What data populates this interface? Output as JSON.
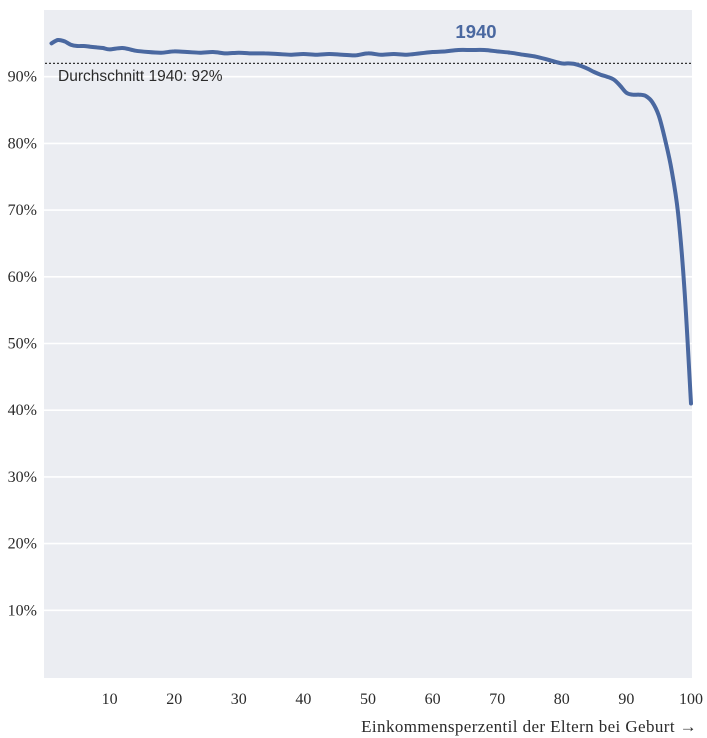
{
  "chart_data": {
    "type": "line",
    "xlabel": "Einkommensperzentil der Eltern bei Geburt →",
    "xlim": [
      0,
      100
    ],
    "ylim": [
      0,
      100
    ],
    "x_ticks": [
      10,
      20,
      30,
      40,
      50,
      60,
      70,
      80,
      90,
      100
    ],
    "x_tick_labels": [
      "10",
      "20",
      "30",
      "40",
      "50",
      "60",
      "70",
      "80",
      "90",
      "100"
    ],
    "y_ticks": [
      10,
      20,
      30,
      40,
      50,
      60,
      70,
      80,
      90
    ],
    "y_tick_labels": [
      "10%",
      "20%",
      "30%",
      "40%",
      "50%",
      "60%",
      "70%",
      "80%",
      "90%"
    ],
    "grid": true,
    "series": [
      {
        "name": "1940",
        "color": "#4a68a0",
        "x": [
          1,
          2,
          3,
          4,
          5,
          6,
          7,
          8,
          9,
          10,
          12,
          14,
          16,
          18,
          20,
          22,
          24,
          26,
          28,
          30,
          32,
          34,
          36,
          38,
          40,
          42,
          44,
          46,
          48,
          50,
          52,
          54,
          56,
          58,
          60,
          62,
          64,
          66,
          68,
          70,
          72,
          74,
          76,
          78,
          80,
          81,
          82,
          83,
          84,
          85,
          86,
          87,
          88,
          89,
          90,
          91,
          92,
          93,
          94,
          95,
          96,
          97,
          98,
          99,
          100
        ],
        "y": [
          95.0,
          95.5,
          95.3,
          94.8,
          94.6,
          94.6,
          94.5,
          94.4,
          94.3,
          94.1,
          94.3,
          93.9,
          93.7,
          93.6,
          93.8,
          93.7,
          93.6,
          93.7,
          93.5,
          93.6,
          93.5,
          93.5,
          93.4,
          93.3,
          93.4,
          93.3,
          93.4,
          93.3,
          93.2,
          93.5,
          93.3,
          93.4,
          93.3,
          93.5,
          93.7,
          93.8,
          94.0,
          94.0,
          94.0,
          93.8,
          93.6,
          93.3,
          93.0,
          92.5,
          92.0,
          92.0,
          91.9,
          91.6,
          91.2,
          90.7,
          90.3,
          90.0,
          89.6,
          88.7,
          87.6,
          87.3,
          87.3,
          87.1,
          86.2,
          84.2,
          80.5,
          76.0,
          69.5,
          58.0,
          41.0
        ]
      }
    ],
    "reference_line": {
      "y": 92,
      "label": "Durchschnitt 1940: 92%"
    },
    "colors": {
      "plot_background": "#ebedf2",
      "grid": "#ffffff",
      "reference_line": "#333333",
      "text": "#2b2b2b"
    }
  }
}
